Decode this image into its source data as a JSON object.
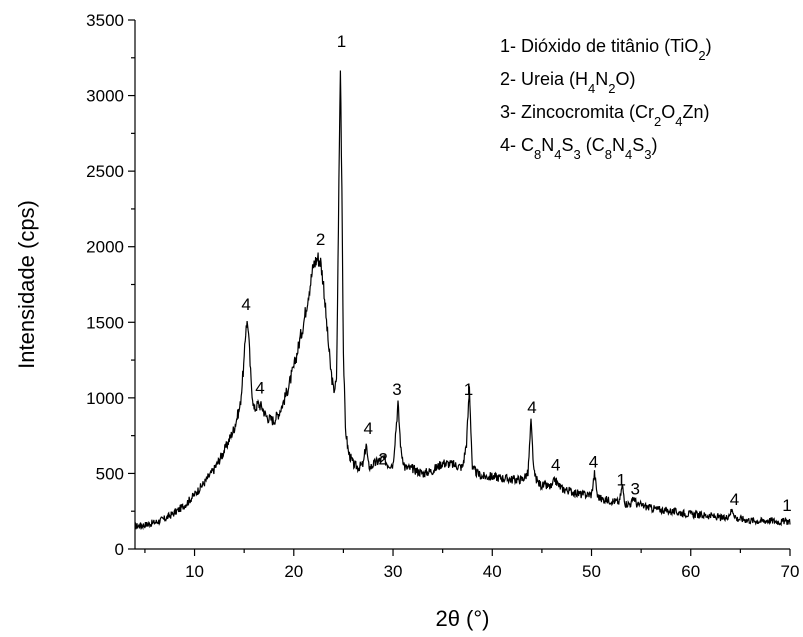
{
  "chart_data": {
    "type": "line",
    "title": "",
    "xlabel": "2θ (°)",
    "ylabel": "Intensidade (cps)",
    "xlim": [
      4,
      70
    ],
    "ylim": [
      0,
      3500
    ],
    "xticks": [
      10,
      20,
      30,
      40,
      50,
      60,
      70
    ],
    "yticks": [
      0,
      500,
      1000,
      1500,
      2000,
      2500,
      3000,
      3500
    ],
    "grid": false,
    "legend_position": "top-right",
    "legend": [
      {
        "text": "1- Dióxido de titânio (TiO",
        "formula_sub": "2",
        "close": ")"
      },
      {
        "text": "2- Ureia (H",
        "formula": "4N2O",
        "close": ")"
      },
      {
        "text": "3- Zincocromita (Cr",
        "formula": "2O4Zn",
        "close": ")"
      },
      {
        "text": "4- C",
        "formula": "8N4S3 (C8N4S3",
        "close": ")"
      }
    ],
    "legend_rich": [
      [
        [
          "1- Dióxido de titânio (TiO",
          false
        ],
        [
          "2",
          true
        ],
        [
          ")",
          false
        ]
      ],
      [
        [
          "2- Ureia (H",
          false
        ],
        [
          "4",
          true
        ],
        [
          "N",
          false
        ],
        [
          "2",
          true
        ],
        [
          "O)",
          false
        ]
      ],
      [
        [
          "3- Zincocromita (Cr",
          false
        ],
        [
          "2",
          true
        ],
        [
          "O",
          false
        ],
        [
          "4",
          true
        ],
        [
          "Zn)",
          false
        ]
      ],
      [
        [
          "4- C",
          false
        ],
        [
          "8",
          true
        ],
        [
          "N",
          false
        ],
        [
          "4",
          true
        ],
        [
          "S",
          false
        ],
        [
          "3",
          true
        ],
        [
          " (C",
          false
        ],
        [
          "8",
          true
        ],
        [
          "N",
          false
        ],
        [
          "4",
          true
        ],
        [
          "S",
          false
        ],
        [
          "3",
          true
        ],
        [
          ")",
          false
        ]
      ]
    ],
    "series": [
      {
        "x": [
          4,
          5,
          6,
          7,
          8,
          9,
          10,
          11,
          12,
          13,
          14,
          14.6,
          15.0,
          15.2,
          15.4,
          15.7,
          16.0,
          16.4,
          16.8,
          17.2,
          17.6,
          18.0,
          18.5,
          19.0,
          19.5,
          20.0,
          20.5,
          21.0,
          21.5,
          22.0,
          22.4,
          22.7,
          23.0,
          23.3,
          23.7,
          24.0,
          24.3,
          24.5,
          24.7,
          24.85,
          25.0,
          25.2,
          25.5,
          26.0,
          26.5,
          27.0,
          27.3,
          27.5,
          27.7,
          28.0,
          28.5,
          29.0,
          29.5,
          30.0,
          30.3,
          30.5,
          30.8,
          31.2,
          32.0,
          33.0,
          34.0,
          35.0,
          36.0,
          37.0,
          37.4,
          37.7,
          38.0,
          38.5,
          39.0,
          40.0,
          41.0,
          42.0,
          43.0,
          43.6,
          43.9,
          44.2,
          44.6,
          45.0,
          46.0,
          46.3,
          46.7,
          47.0,
          48.0,
          49.0,
          50.0,
          50.3,
          50.6,
          51.0,
          52.0,
          52.8,
          53.1,
          53.4,
          54.0,
          54.3,
          54.6,
          55.0,
          56.0,
          58.0,
          60.0,
          62.0,
          63.5,
          64.2,
          64.6,
          65.0,
          66.0,
          67.0,
          68.0,
          69.0,
          69.6,
          70.0
        ],
        "y": [
          150,
          160,
          175,
          200,
          240,
          290,
          360,
          440,
          530,
          650,
          800,
          950,
          1250,
          1500,
          1480,
          1100,
          920,
          960,
          940,
          880,
          860,
          850,
          900,
          980,
          1080,
          1200,
          1350,
          1500,
          1700,
          1880,
          1930,
          1900,
          1750,
          1500,
          1200,
          1050,
          1100,
          2150,
          3200,
          2400,
          1300,
          800,
          640,
          560,
          540,
          560,
          700,
          560,
          540,
          560,
          580,
          600,
          560,
          560,
          800,
          960,
          650,
          540,
          530,
          500,
          520,
          570,
          560,
          540,
          700,
          1070,
          530,
          500,
          480,
          480,
          470,
          460,
          460,
          500,
          840,
          500,
          440,
          420,
          410,
          460,
          420,
          400,
          380,
          360,
          360,
          500,
          350,
          330,
          320,
          310,
          420,
          300,
          300,
          340,
          290,
          290,
          270,
          250,
          230,
          220,
          200,
          260,
          200,
          200,
          190,
          185,
          190,
          180,
          185,
          180
        ]
      }
    ],
    "annotations": [
      {
        "text": "1",
        "x": 24.8,
        "y": 3320
      },
      {
        "text": "2",
        "x": 22.7,
        "y": 2010
      },
      {
        "text": "4",
        "x": 15.2,
        "y": 1580
      },
      {
        "text": "4",
        "x": 16.6,
        "y": 1030
      },
      {
        "text": "4",
        "x": 27.5,
        "y": 760
      },
      {
        "text": "2",
        "x": 29.0,
        "y": 560
      },
      {
        "text": "3",
        "x": 30.4,
        "y": 1020
      },
      {
        "text": "1",
        "x": 37.6,
        "y": 1020
      },
      {
        "text": "4",
        "x": 44.0,
        "y": 900
      },
      {
        "text": "4",
        "x": 46.4,
        "y": 520
      },
      {
        "text": "4",
        "x": 50.2,
        "y": 540
      },
      {
        "text": "1",
        "x": 53.0,
        "y": 420
      },
      {
        "text": "3",
        "x": 54.4,
        "y": 360
      },
      {
        "text": "4",
        "x": 64.4,
        "y": 290
      },
      {
        "text": "1",
        "x": 69.7,
        "y": 250
      }
    ]
  }
}
